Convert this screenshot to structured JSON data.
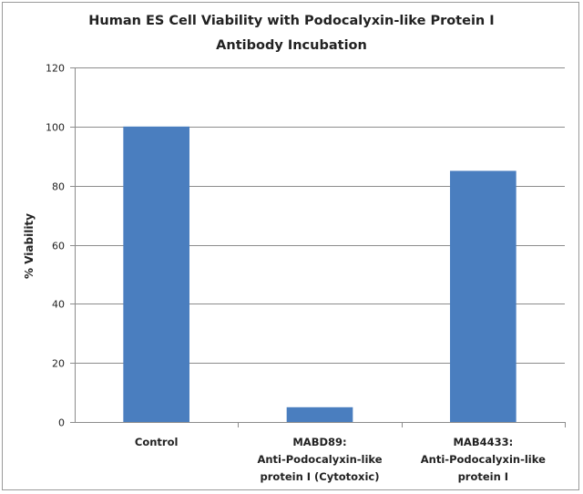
{
  "chart_data": {
    "type": "bar",
    "title_lines": [
      "Human ES Cell Viability with Podocalyxin-like Protein I",
      "Antibody Incubation"
    ],
    "ylabel": "% Viability",
    "xlabel": "",
    "ylim": [
      0,
      120
    ],
    "yticks": [
      0,
      20,
      40,
      60,
      80,
      100,
      120
    ],
    "grid": true,
    "legend": "none",
    "bar_color": "#4a7ebf",
    "categories": [
      {
        "lines": [
          "Control"
        ]
      },
      {
        "lines": [
          "MABD89:",
          "Anti-Podocalyxin-like",
          "protein I (Cytotoxic)"
        ]
      },
      {
        "lines": [
          "MAB4433:",
          "Anti-Podocalyxin-like",
          "protein I"
        ]
      }
    ],
    "values": [
      100,
      5,
      85
    ]
  }
}
